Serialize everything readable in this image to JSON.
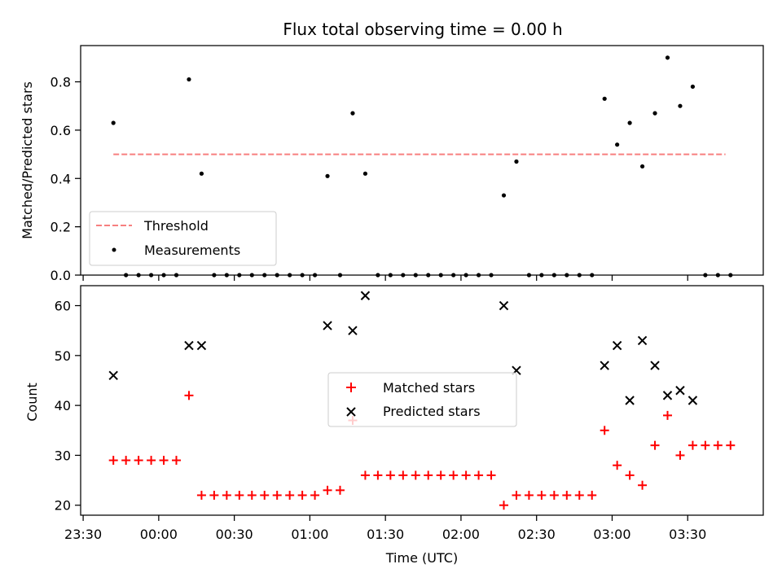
{
  "chart_data": [
    {
      "type": "scatter",
      "title": "Flux total observing time = 0.00 h",
      "ylabel": "Matched/Predicted stars",
      "ylim": [
        0,
        0.95
      ],
      "yticks": [
        "0.0",
        "0.2",
        "0.4",
        "0.6",
        "0.8"
      ],
      "xlim": [
        "23:29",
        "04:00"
      ],
      "grid": false,
      "legend_placement": "lower-left",
      "threshold": {
        "name": "Threshold",
        "value": 0.5,
        "x_start": "23:42",
        "x_end": "03:45",
        "color": "#f77f7f"
      },
      "series": [
        {
          "name": "Measurements",
          "color": "#000000",
          "points": [
            [
              "23:42",
              0.63
            ],
            [
              "23:47",
              0.0
            ],
            [
              "23:52",
              0.0
            ],
            [
              "23:57",
              0.0
            ],
            [
              "00:02",
              0.0
            ],
            [
              "00:07",
              0.0
            ],
            [
              "00:12",
              0.81
            ],
            [
              "00:17",
              0.42
            ],
            [
              "00:22",
              0.0
            ],
            [
              "00:27",
              0.0
            ],
            [
              "00:32",
              0.0
            ],
            [
              "00:37",
              0.0
            ],
            [
              "00:42",
              0.0
            ],
            [
              "00:47",
              0.0
            ],
            [
              "00:52",
              0.0
            ],
            [
              "00:57",
              0.0
            ],
            [
              "01:02",
              0.0
            ],
            [
              "01:07",
              0.41
            ],
            [
              "01:12",
              0.0
            ],
            [
              "01:17",
              0.67
            ],
            [
              "01:22",
              0.42
            ],
            [
              "01:27",
              0.0
            ],
            [
              "01:32",
              0.0
            ],
            [
              "01:37",
              0.0
            ],
            [
              "01:42",
              0.0
            ],
            [
              "01:47",
              0.0
            ],
            [
              "01:52",
              0.0
            ],
            [
              "01:57",
              0.0
            ],
            [
              "02:02",
              0.0
            ],
            [
              "02:07",
              0.0
            ],
            [
              "02:12",
              0.0
            ],
            [
              "02:17",
              0.33
            ],
            [
              "02:22",
              0.47
            ],
            [
              "02:27",
              0.0
            ],
            [
              "02:32",
              0.0
            ],
            [
              "02:37",
              0.0
            ],
            [
              "02:42",
              0.0
            ],
            [
              "02:47",
              0.0
            ],
            [
              "02:52",
              0.0
            ],
            [
              "02:57",
              0.73
            ],
            [
              "03:02",
              0.54
            ],
            [
              "03:07",
              0.63
            ],
            [
              "03:12",
              0.45
            ],
            [
              "03:17",
              0.67
            ],
            [
              "03:22",
              0.9
            ],
            [
              "03:27",
              0.7
            ],
            [
              "03:32",
              0.78
            ],
            [
              "03:37",
              0.0
            ],
            [
              "03:42",
              0.0
            ],
            [
              "03:47",
              0.0
            ]
          ]
        }
      ]
    },
    {
      "type": "scatter",
      "xlabel": "Time (UTC)",
      "ylabel": "Count",
      "ylim": [
        18,
        64
      ],
      "yticks": [
        "20",
        "30",
        "40",
        "50",
        "60"
      ],
      "xlim": [
        "23:29",
        "04:00"
      ],
      "xticks": [
        "23:30",
        "00:00",
        "00:30",
        "01:00",
        "01:30",
        "02:00",
        "02:30",
        "03:00",
        "03:30"
      ],
      "grid": false,
      "legend_placement": "center",
      "series": [
        {
          "name": "Matched stars",
          "marker": "plus",
          "color": "#ff0000",
          "points": [
            [
              "23:42",
              29
            ],
            [
              "23:47",
              29
            ],
            [
              "23:52",
              29
            ],
            [
              "23:57",
              29
            ],
            [
              "00:02",
              29
            ],
            [
              "00:07",
              29
            ],
            [
              "00:12",
              42
            ],
            [
              "00:17",
              22
            ],
            [
              "00:22",
              22
            ],
            [
              "00:27",
              22
            ],
            [
              "00:32",
              22
            ],
            [
              "00:37",
              22
            ],
            [
              "00:42",
              22
            ],
            [
              "00:47",
              22
            ],
            [
              "00:52",
              22
            ],
            [
              "00:57",
              22
            ],
            [
              "01:02",
              22
            ],
            [
              "01:07",
              23
            ],
            [
              "01:12",
              23
            ],
            [
              "01:17",
              37
            ],
            [
              "01:22",
              26
            ],
            [
              "01:27",
              26
            ],
            [
              "01:32",
              26
            ],
            [
              "01:37",
              26
            ],
            [
              "01:42",
              26
            ],
            [
              "01:47",
              26
            ],
            [
              "01:52",
              26
            ],
            [
              "01:57",
              26
            ],
            [
              "02:02",
              26
            ],
            [
              "02:07",
              26
            ],
            [
              "02:12",
              26
            ],
            [
              "02:17",
              20
            ],
            [
              "02:22",
              22
            ],
            [
              "02:27",
              22
            ],
            [
              "02:32",
              22
            ],
            [
              "02:37",
              22
            ],
            [
              "02:42",
              22
            ],
            [
              "02:47",
              22
            ],
            [
              "02:52",
              22
            ],
            [
              "02:57",
              35
            ],
            [
              "03:02",
              28
            ],
            [
              "03:07",
              26
            ],
            [
              "03:12",
              24
            ],
            [
              "03:17",
              32
            ],
            [
              "03:22",
              38
            ],
            [
              "03:27",
              30
            ],
            [
              "03:32",
              32
            ],
            [
              "03:37",
              32
            ],
            [
              "03:42",
              32
            ],
            [
              "03:47",
              32
            ]
          ]
        },
        {
          "name": "Predicted stars",
          "marker": "x",
          "color": "#000000",
          "points": [
            [
              "23:42",
              46
            ],
            [
              "00:12",
              52
            ],
            [
              "00:17",
              52
            ],
            [
              "01:07",
              56
            ],
            [
              "01:17",
              55
            ],
            [
              "01:22",
              62
            ],
            [
              "02:17",
              60
            ],
            [
              "02:22",
              47
            ],
            [
              "02:57",
              48
            ],
            [
              "03:02",
              52
            ],
            [
              "03:07",
              41
            ],
            [
              "03:12",
              53
            ],
            [
              "03:17",
              48
            ],
            [
              "03:22",
              42
            ],
            [
              "03:27",
              43
            ],
            [
              "03:32",
              41
            ]
          ]
        }
      ]
    }
  ]
}
